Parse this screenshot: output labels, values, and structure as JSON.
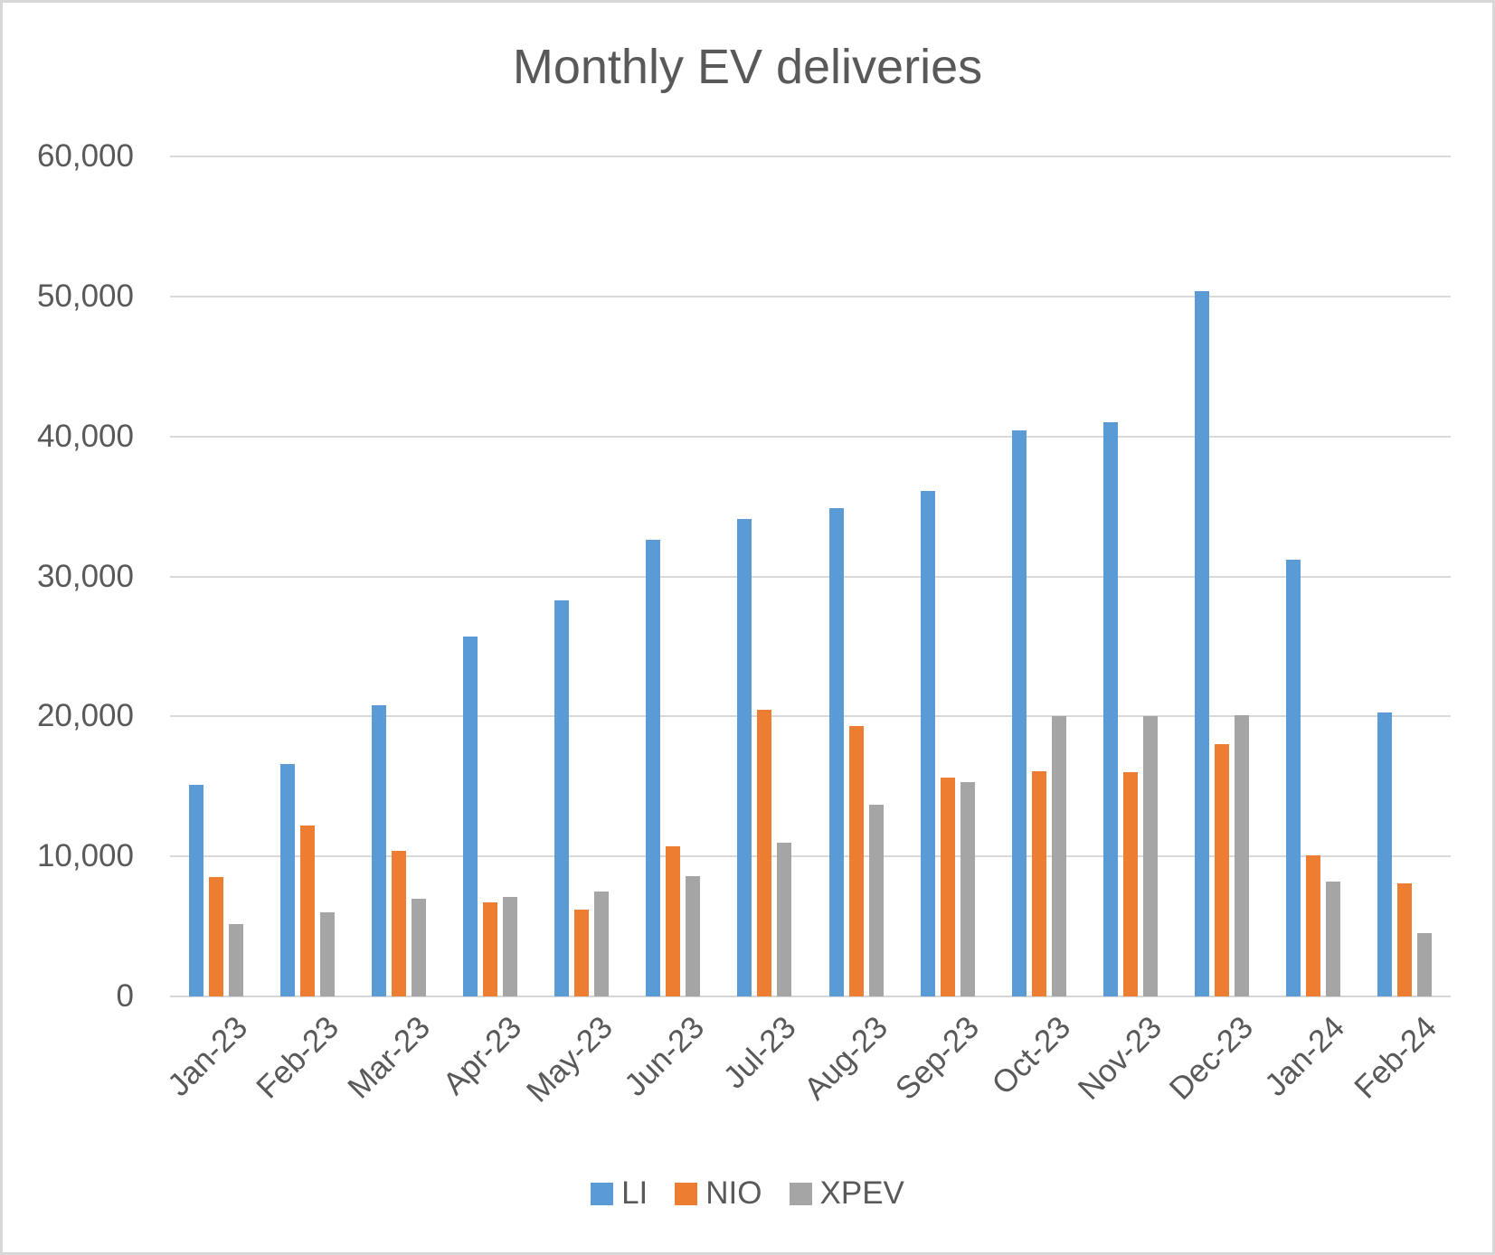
{
  "title": "Monthly EV deliveries",
  "colors": {
    "li_blue": "#5B9BD5",
    "nio_orange": "#ED7D31",
    "xpev_gray": "#A5A5A5",
    "gridline": "#D9D9D9",
    "text": "#595959"
  },
  "chart_data": {
    "type": "bar",
    "title": "Monthly EV deliveries",
    "xlabel": "",
    "ylabel": "",
    "categories": [
      "Jan-23",
      "Feb-23",
      "Mar-23",
      "Apr-23",
      "May-23",
      "Jun-23",
      "Jul-23",
      "Aug-23",
      "Sep-23",
      "Oct-23",
      "Nov-23",
      "Dec-23",
      "Jan-24",
      "Feb-24"
    ],
    "series": [
      {
        "name": "LI",
        "color": "#5B9BD5",
        "values": [
          15100,
          16600,
          20800,
          25700,
          28300,
          32600,
          34100,
          34900,
          36100,
          40400,
          41000,
          50400,
          31200,
          20300
        ]
      },
      {
        "name": "NIO",
        "color": "#ED7D31",
        "values": [
          8500,
          12200,
          10400,
          6700,
          6200,
          10700,
          20500,
          19300,
          15600,
          16100,
          16000,
          18000,
          10100,
          8100
        ]
      },
      {
        "name": "XPEV",
        "color": "#A5A5A5",
        "values": [
          5200,
          6000,
          7000,
          7100,
          7500,
          8600,
          11000,
          13700,
          15300,
          20000,
          20000,
          20100,
          8200,
          4500
        ]
      }
    ],
    "ylim": [
      0,
      60000
    ],
    "ytick_values": [
      0,
      10000,
      20000,
      30000,
      40000,
      50000,
      60000
    ],
    "ytick_labels": [
      "0",
      "10,000",
      "20,000",
      "30,000",
      "40,000",
      "50,000",
      "60,000"
    ],
    "grid": true,
    "legend_position": "bottom"
  }
}
